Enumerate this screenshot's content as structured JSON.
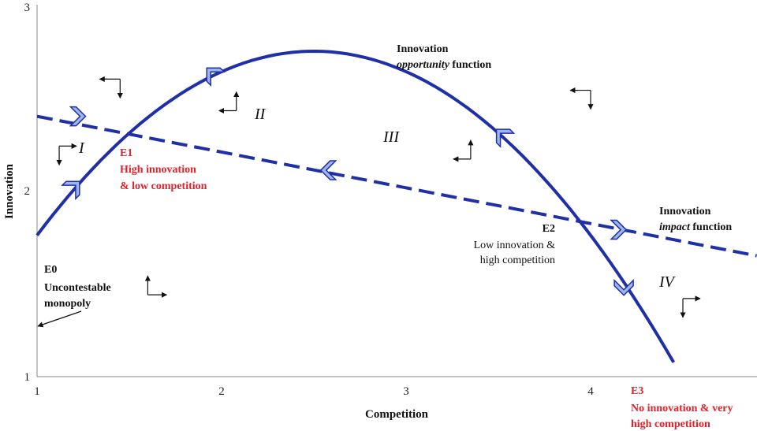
{
  "chart_data": {
    "type": "line",
    "xlabel": "Competition",
    "ylabel": "Innovation",
    "xlim": [
      1,
      4.9
    ],
    "ylim": [
      1,
      3
    ],
    "x_ticks": [
      "1",
      "2",
      "3",
      "4"
    ],
    "y_ticks": [
      "1",
      "2",
      "3"
    ],
    "series": [
      {
        "name": "Innovation opportunity function",
        "style": "solid",
        "color": "#1f2fa8",
        "curve": "parabola",
        "vertex_x": 2.5,
        "vertex_y": 2.75,
        "x_start": 1.0,
        "x_end": 4.45,
        "points": [
          [
            1.0,
            1.76
          ],
          [
            1.5,
            2.31
          ],
          [
            2.0,
            2.64
          ],
          [
            2.5,
            2.75
          ],
          [
            3.0,
            2.64
          ],
          [
            3.5,
            2.31
          ],
          [
            4.0,
            1.76
          ],
          [
            4.45,
            1.0
          ]
        ]
      },
      {
        "name": "Innovation impact function",
        "style": "dashed",
        "color": "#1f2fa8",
        "points": [
          [
            1.0,
            2.4
          ],
          [
            4.9,
            1.65
          ]
        ]
      }
    ],
    "flow_markers": [
      {
        "x": 1.22,
        "y": 2.4,
        "direction": "right"
      },
      {
        "x": 1.2,
        "y": 2.02,
        "direction": "up-right"
      },
      {
        "x": 1.95,
        "y": 2.63,
        "direction": "up-left"
      },
      {
        "x": 2.58,
        "y": 2.11,
        "direction": "left"
      },
      {
        "x": 3.52,
        "y": 2.3,
        "direction": "up-left"
      },
      {
        "x": 4.15,
        "y": 1.79,
        "direction": "right"
      },
      {
        "x": 4.18,
        "y": 1.48,
        "direction": "down"
      }
    ],
    "direction_glyphs": [
      {
        "x": 1.45,
        "y": 2.6,
        "kind": "down-left"
      },
      {
        "x": 2.08,
        "y": 2.43,
        "kind": "up-left"
      },
      {
        "x": 1.12,
        "y": 2.24,
        "kind": "down-right"
      },
      {
        "x": 3.35,
        "y": 2.17,
        "kind": "up-left"
      },
      {
        "x": 4.0,
        "y": 2.54,
        "kind": "down-left"
      },
      {
        "x": 1.6,
        "y": 1.44,
        "kind": "up-right"
      },
      {
        "x": 4.5,
        "y": 1.42,
        "kind": "down-right"
      }
    ],
    "region_labels": [
      "I",
      "II",
      "III",
      "IV"
    ],
    "equilibria": {
      "e0": {
        "label": "E0",
        "line1": "Uncontestable",
        "line2": "monopoly",
        "x": 1.0,
        "y": 1.27
      },
      "e1": {
        "label": "E1",
        "line1": "High innovation",
        "line2": "& low competition",
        "x": 1.52,
        "y": 2.31
      },
      "e2": {
        "label": "E2",
        "line1": "Low innovation &",
        "line2": "high competition",
        "x": 3.9,
        "y": 1.84
      },
      "e3": {
        "label": "E3",
        "line1": "No innovation & very",
        "line2": "high competition",
        "x": 4.45,
        "y": 1.0
      }
    },
    "opportunity_label": {
      "line1": "Innovation",
      "line2_italic": "opportunity",
      "line2_rest": " function"
    },
    "impact_label": {
      "line1": "Innovation",
      "line2_italic": "impact",
      "line2_rest": " function"
    },
    "grid": false
  }
}
